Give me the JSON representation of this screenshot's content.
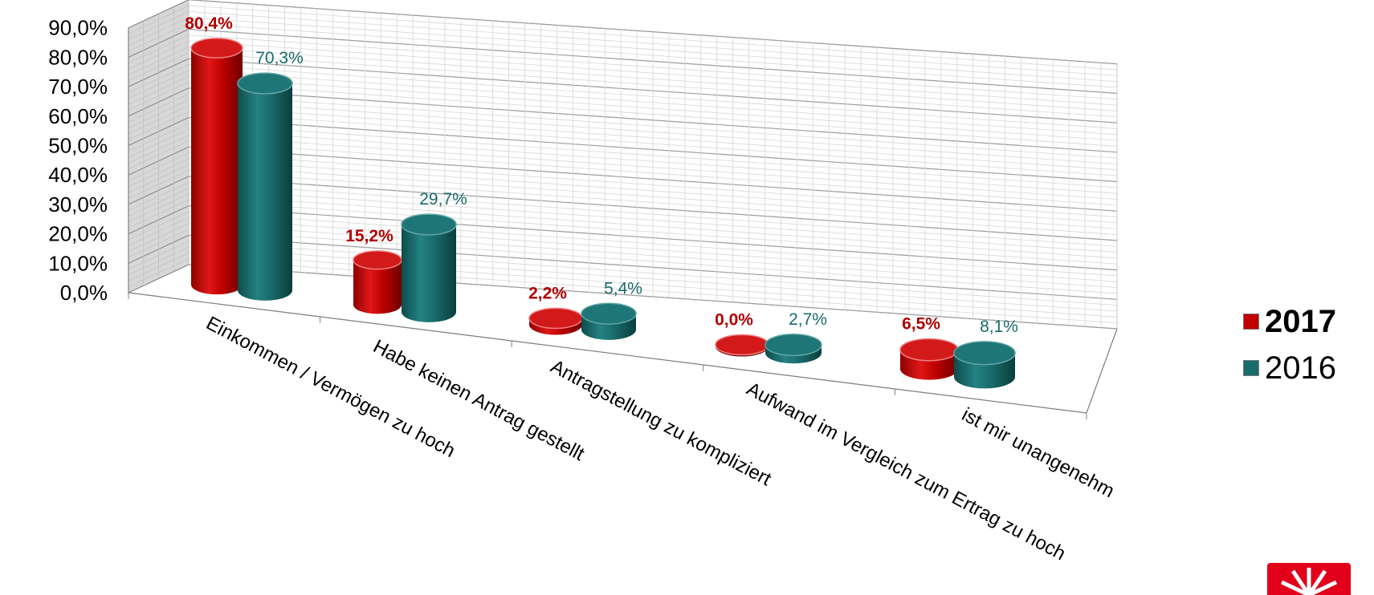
{
  "chart_data": {
    "type": "bar",
    "style": "3d-cylinder",
    "categories": [
      "Einkommen / Vermögen zu hoch",
      "Habe keinen Antrag gestellt",
      "Antragstellung zu kompliziert",
      "Aufwand im Vergleich zum Ertrag zu hoch",
      "ist mir unangenehm"
    ],
    "series": [
      {
        "name": "2017",
        "values": [
          80.4,
          15.2,
          2.2,
          0.0,
          6.5
        ],
        "labels": [
          "80,4%",
          "15,2%",
          "2,2%",
          "0,0%",
          "6,5%"
        ],
        "color": "#c00000"
      },
      {
        "name": "2016",
        "values": [
          70.3,
          29.7,
          5.4,
          2.7,
          8.1
        ],
        "labels": [
          "70,3%",
          "29,7%",
          "5,4%",
          "2,7%",
          "8,1%"
        ],
        "color": "#1a6b6b"
      }
    ],
    "yticks": [
      "0,0%",
      "10,0%",
      "20,0%",
      "30,0%",
      "40,0%",
      "50,0%",
      "60,0%",
      "70,0%",
      "80,0%",
      "90,0%"
    ],
    "ylim": [
      0,
      90
    ],
    "grid": true,
    "legend_position": "right"
  }
}
